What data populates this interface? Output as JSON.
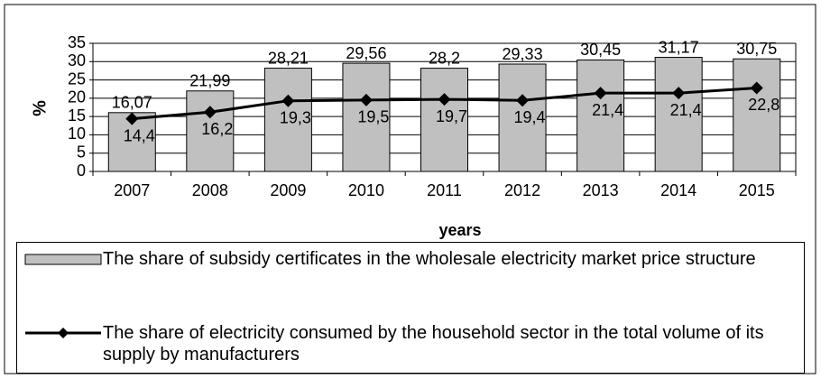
{
  "chart_data": {
    "type": "bar-line",
    "y_label": "%",
    "x_label": "years",
    "categories": [
      "2007",
      "2008",
      "2009",
      "2010",
      "2011",
      "2012",
      "2013",
      "2014",
      "2015"
    ],
    "series": [
      {
        "name": "The share of subsidy certificates in the wholesale electricity market price structure",
        "type": "bar",
        "color": "#c0c0c0",
        "values": [
          16.07,
          21.99,
          28.21,
          29.56,
          28.2,
          29.33,
          30.45,
          31.17,
          30.75
        ],
        "value_labels": [
          "16,07",
          "21,99",
          "28,21",
          "29,56",
          "28,2",
          "29,33",
          "30,45",
          "31,17",
          "30,75"
        ]
      },
      {
        "name": "The share of electricity consumed by the household sector in the total volume of its supply by manufacturers",
        "type": "line",
        "color": "#000000",
        "values": [
          14.4,
          16.2,
          19.3,
          19.5,
          19.7,
          19.4,
          21.4,
          21.4,
          22.8
        ],
        "value_labels": [
          "14,4",
          "16,2",
          "19,3",
          "19,5",
          "19,7",
          "19,4",
          "21,4",
          "21,4",
          "22,8"
        ]
      }
    ],
    "ylim": [
      0,
      35
    ],
    "yticks": [
      0,
      5,
      10,
      15,
      20,
      25,
      30,
      35
    ],
    "grid": true
  }
}
